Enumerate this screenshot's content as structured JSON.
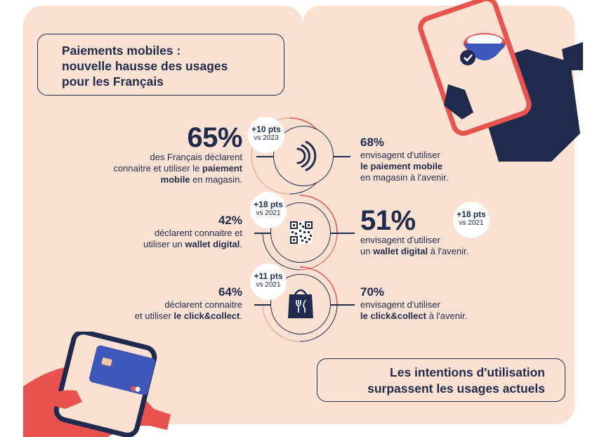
{
  "title": {
    "line1": "Paiements mobiles :",
    "line2": "nouvelle hausse des usages",
    "line3": "pour les Français"
  },
  "rows": [
    {
      "left": {
        "value": "65%",
        "lines": [
          "des Français déclarent",
          "connaitre et utiliser le",
          "en magasin."
        ],
        "bold_a": "paiement",
        "bold_b": "mobile"
      },
      "badge": {
        "pts": "+10 pts",
        "vs": "vs 2023"
      },
      "icon": "contactless-icon",
      "right": {
        "value": "68%",
        "line1": "envisagent d'utiliser",
        "bold": "le paiement mobile",
        "line3": "en magasin à l'avenir."
      }
    },
    {
      "left": {
        "value": "42%",
        "line1": "déclarent connaitre et",
        "line2_pre": "utiliser un",
        "bold": "wallet digital",
        "line2_post": "."
      },
      "badge": {
        "pts": "+18 pts",
        "vs": "vs 2021"
      },
      "icon": "qr-code-icon",
      "right": {
        "value": "51%",
        "line1": "envisagent d'utiliser",
        "line2_pre": "un",
        "bold": "wallet digital",
        "line2_post": "à l'avenir."
      },
      "right_badge": {
        "pts": "+18 pts",
        "vs": "vs 2021"
      }
    },
    {
      "left": {
        "value": "64%",
        "line1": "déclarent connaitre",
        "line2_pre": "et utiliser",
        "bold": "le click&collect",
        "line2_post": "."
      },
      "badge": {
        "pts": "+11 pts",
        "vs": "vs 2021"
      },
      "icon": "takeaway-bag-icon",
      "right": {
        "value": "70%",
        "line1": "envisagent d'utiliser",
        "bold": "le click&collect",
        "line2_post": "à l'avenir."
      }
    }
  ],
  "footer": {
    "line1": "Les intentions d'utilisation",
    "line2": "surpassent les usages actuels"
  },
  "colors": {
    "panel": "#fbe1d2",
    "navy": "#1f2a4d",
    "accent": "#e8534f",
    "card": "#3f57b8"
  }
}
